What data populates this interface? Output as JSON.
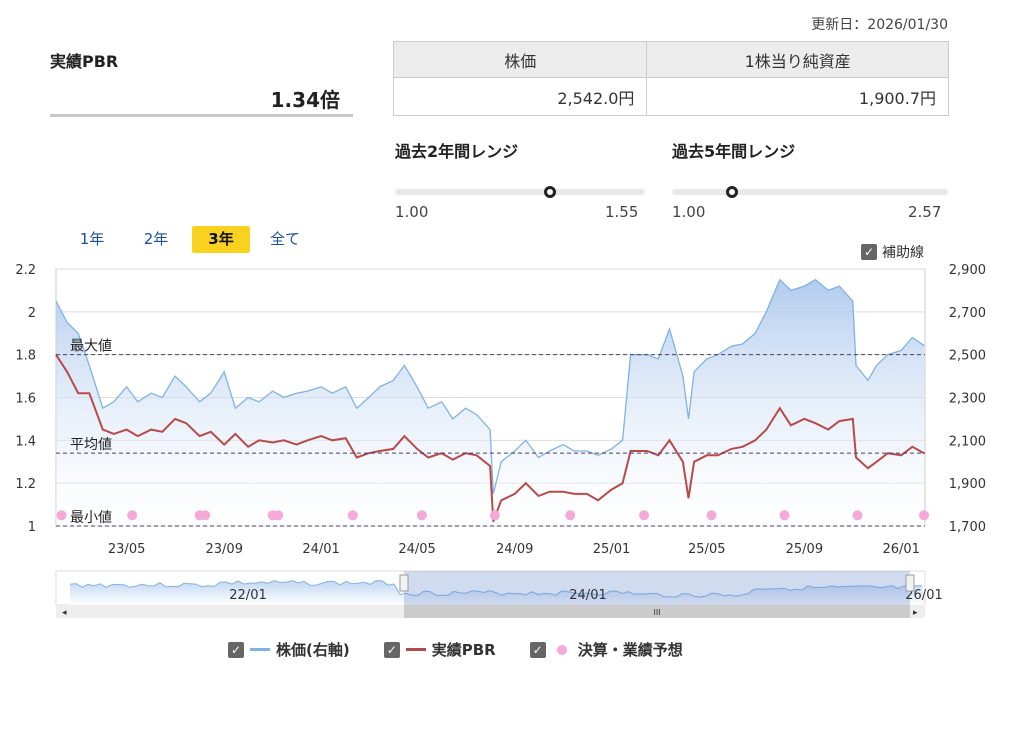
{
  "header": {
    "updated": "更新日：2026/01/30"
  },
  "pbr": {
    "title": "実績PBR",
    "value": "1.34倍"
  },
  "info_table": {
    "headers": [
      "株価",
      "1株当り純資産"
    ],
    "values": [
      "2,542.0円",
      "1,900.7円"
    ]
  },
  "ranges": [
    {
      "title": "過去2年間レンジ",
      "min": "1.00",
      "max": "1.55",
      "current": 1.34
    },
    {
      "title": "過去5年間レンジ",
      "min": "1.00",
      "max": "2.57",
      "current": 1.34
    }
  ],
  "periods": [
    {
      "label": "1年",
      "active": false
    },
    {
      "label": "2年",
      "active": false
    },
    {
      "label": "3年",
      "active": true
    },
    {
      "label": "全て",
      "active": false
    }
  ],
  "aux_lines_label": "補助線",
  "legend": [
    {
      "label": "株価(右軸)",
      "color": "#7fb2e5"
    },
    {
      "label": "実績PBR",
      "color": "#b84a48"
    },
    {
      "label": "決算・業績予想",
      "color": "#f4a9d8"
    }
  ],
  "chart_data": {
    "type": "line",
    "x_range": [
      "2023-02-01",
      "2026-01-31"
    ],
    "x_ticks": [
      [
        "2023-05-01",
        "23/05"
      ],
      [
        "2023-09-01",
        "23/09"
      ],
      [
        "2024-01-01",
        "24/01"
      ],
      [
        "2024-05-01",
        "24/05"
      ],
      [
        "2024-09-01",
        "24/09"
      ],
      [
        "2025-01-01",
        "25/01"
      ],
      [
        "2025-05-01",
        "25/05"
      ],
      [
        "2025-09-01",
        "25/09"
      ],
      [
        "2026-01-01",
        "26/01"
      ]
    ],
    "y_left": {
      "range": [
        1,
        2.2
      ],
      "ticks": [
        "1",
        "1.2",
        "1.4",
        "1.6",
        "1.8",
        "2",
        "2.2"
      ]
    },
    "y_right": {
      "range": [
        1700,
        2900
      ],
      "ticks": [
        "1,700",
        "1,900",
        "2,100",
        "2,300",
        "2,500",
        "2,700",
        "2,900"
      ]
    },
    "grid": true,
    "ref_lines": [
      {
        "label": "最大値",
        "value": 1.8
      },
      {
        "label": "平均値",
        "value": 1.34
      },
      {
        "label": "最小値",
        "value": 1.0
      }
    ],
    "dates": [
      "2023-02-01",
      "2023-02-15",
      "2023-03-01",
      "2023-03-15",
      "2023-04-01",
      "2023-04-15",
      "2023-05-01",
      "2023-05-15",
      "2023-06-01",
      "2023-06-15",
      "2023-07-01",
      "2023-07-15",
      "2023-08-01",
      "2023-08-15",
      "2023-09-01",
      "2023-09-15",
      "2023-10-01",
      "2023-10-15",
      "2023-11-01",
      "2023-11-15",
      "2023-12-01",
      "2023-12-15",
      "2024-01-01",
      "2024-01-15",
      "2024-02-01",
      "2024-02-15",
      "2024-03-01",
      "2024-03-15",
      "2024-04-01",
      "2024-04-15",
      "2024-05-01",
      "2024-05-15",
      "2024-06-01",
      "2024-06-15",
      "2024-07-01",
      "2024-07-15",
      "2024-08-01",
      "2024-08-05",
      "2024-08-15",
      "2024-09-01",
      "2024-09-15",
      "2024-10-01",
      "2024-10-15",
      "2024-11-01",
      "2024-11-15",
      "2024-12-01",
      "2024-12-15",
      "2025-01-01",
      "2025-01-15",
      "2025-01-25",
      "2025-02-15",
      "2025-03-01",
      "2025-03-15",
      "2025-04-01",
      "2025-04-08",
      "2025-04-15",
      "2025-05-01",
      "2025-05-15",
      "2025-06-01",
      "2025-06-15",
      "2025-07-01",
      "2025-07-15",
      "2025-08-01",
      "2025-08-15",
      "2025-09-01",
      "2025-09-15",
      "2025-10-01",
      "2025-10-15",
      "2025-11-01",
      "2025-11-05",
      "2025-11-20",
      "2025-12-01",
      "2025-12-15",
      "2026-01-01",
      "2026-01-15",
      "2026-01-30"
    ],
    "series": [
      {
        "name": "株価(右軸)",
        "axis": "right",
        "color": "#7fb2e5",
        "values": [
          2750,
          2650,
          2600,
          2450,
          2250,
          2280,
          2350,
          2280,
          2320,
          2300,
          2400,
          2350,
          2280,
          2320,
          2420,
          2250,
          2300,
          2280,
          2330,
          2300,
          2320,
          2330,
          2350,
          2320,
          2350,
          2250,
          2300,
          2350,
          2380,
          2450,
          2350,
          2250,
          2280,
          2200,
          2250,
          2220,
          2150,
          1850,
          2000,
          2050,
          2100,
          2020,
          2050,
          2080,
          2050,
          2050,
          2030,
          2060,
          2100,
          2500,
          2500,
          2480,
          2620,
          2400,
          2200,
          2420,
          2480,
          2500,
          2540,
          2550,
          2600,
          2700,
          2850,
          2800,
          2820,
          2850,
          2800,
          2820,
          2750,
          2450,
          2380,
          2450,
          2500,
          2520,
          2580,
          2542
        ]
      },
      {
        "name": "実績PBR",
        "axis": "left",
        "color": "#b84a48",
        "values": [
          1.8,
          1.72,
          1.62,
          1.62,
          1.45,
          1.43,
          1.45,
          1.42,
          1.45,
          1.44,
          1.5,
          1.48,
          1.42,
          1.44,
          1.38,
          1.43,
          1.37,
          1.4,
          1.39,
          1.4,
          1.38,
          1.4,
          1.42,
          1.4,
          1.41,
          1.32,
          1.34,
          1.35,
          1.36,
          1.42,
          1.36,
          1.32,
          1.34,
          1.31,
          1.34,
          1.33,
          1.28,
          1.02,
          1.12,
          1.15,
          1.2,
          1.14,
          1.16,
          1.16,
          1.15,
          1.15,
          1.12,
          1.17,
          1.2,
          1.35,
          1.35,
          1.33,
          1.4,
          1.3,
          1.13,
          1.3,
          1.33,
          1.33,
          1.36,
          1.37,
          1.4,
          1.45,
          1.55,
          1.47,
          1.5,
          1.48,
          1.45,
          1.49,
          1.5,
          1.32,
          1.27,
          1.3,
          1.34,
          1.33,
          1.37,
          1.34
        ]
      }
    ],
    "events": {
      "name": "決算・業績予想",
      "color": "#f4a9d8",
      "dates": [
        "2023-02-08",
        "2023-05-08",
        "2023-08-01",
        "2023-08-08",
        "2023-11-01",
        "2023-11-08",
        "2024-02-10",
        "2024-05-07",
        "2024-08-07",
        "2024-11-10",
        "2025-02-11",
        "2025-05-07",
        "2025-08-07",
        "2025-11-07",
        "2026-01-30"
      ]
    },
    "navigator": {
      "x_ticks": [
        "22/01",
        "24/01",
        "26/01"
      ],
      "range_selected": [
        "2023-02-01",
        "2026-01-30"
      ]
    }
  }
}
